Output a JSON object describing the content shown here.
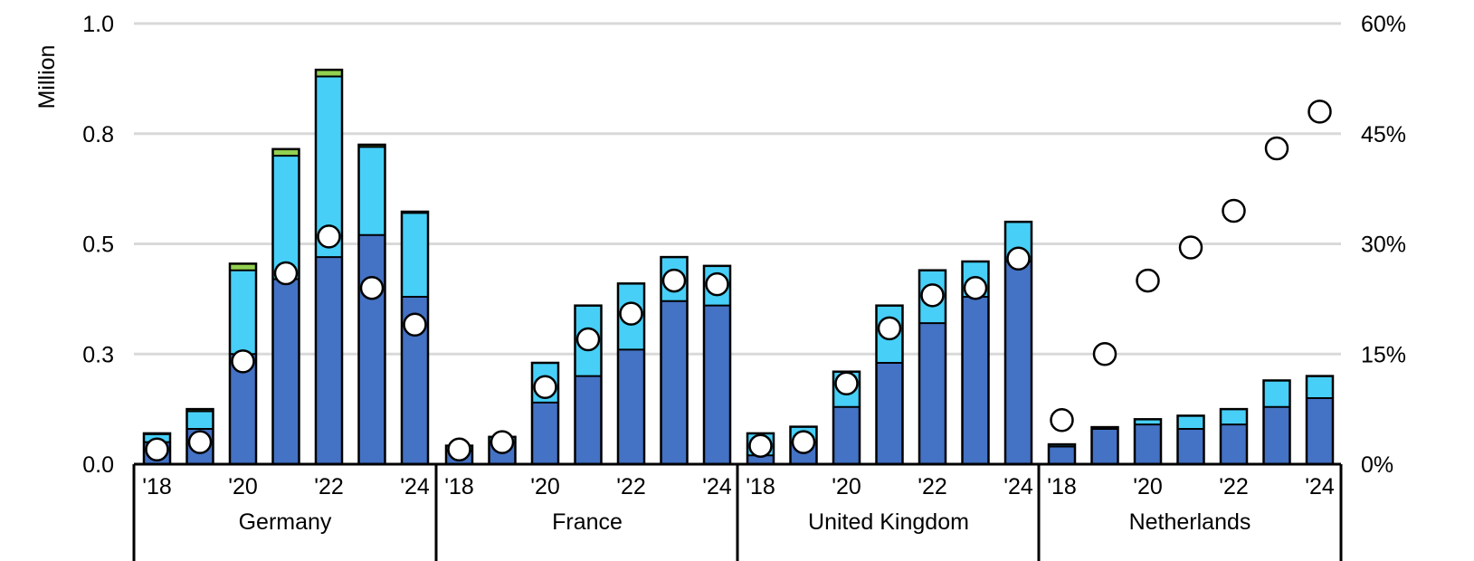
{
  "chart_data": {
    "type": "bar",
    "stacked": true,
    "ylabel": "Million",
    "ylim": [
      0,
      1.0
    ],
    "y_ticks": [
      "0.0",
      "0.3",
      "0.5",
      "0.8",
      "1.0"
    ],
    "y2lim": [
      0,
      60
    ],
    "y2_ticks": [
      "0%",
      "15%",
      "30%",
      "45%",
      "60%"
    ],
    "grid": true,
    "legend": "none",
    "colors": {
      "bottom": "#4472C4",
      "middle": "#47CFF7",
      "top": "#92D050",
      "marker": "#FFFFFF"
    },
    "groups": [
      {
        "name": "Germany",
        "years": [
          "'18",
          "'19",
          "'20",
          "'21",
          "'22",
          "'23",
          "'24"
        ],
        "year_labels": [
          "'18",
          "",
          "'20",
          "",
          "'22",
          "",
          "'24"
        ],
        "bottom": [
          0.05,
          0.08,
          0.25,
          0.42,
          0.47,
          0.52,
          0.38
        ],
        "middle": [
          0.018,
          0.04,
          0.19,
          0.28,
          0.41,
          0.2,
          0.19
        ],
        "top": [
          0.002,
          0.005,
          0.015,
          0.015,
          0.015,
          0.005,
          0.003
        ],
        "share_pct": [
          2,
          3,
          14,
          26,
          31,
          24,
          19
        ]
      },
      {
        "name": "France",
        "years": [
          "'18",
          "'19",
          "'20",
          "'21",
          "'22",
          "'23",
          "'24"
        ],
        "year_labels": [
          "'18",
          "",
          "'20",
          "",
          "'22",
          "",
          "'24"
        ],
        "bottom": [
          0.03,
          0.05,
          0.14,
          0.2,
          0.26,
          0.37,
          0.36
        ],
        "middle": [
          0.012,
          0.012,
          0.09,
          0.16,
          0.15,
          0.1,
          0.09
        ],
        "top": [
          0,
          0,
          0,
          0,
          0,
          0,
          0
        ],
        "share_pct": [
          2,
          3,
          10.5,
          17,
          20.5,
          25,
          24.5
        ]
      },
      {
        "name": "United Kingdom",
        "years": [
          "'18",
          "'19",
          "'20",
          "'21",
          "'22",
          "'23",
          "'24"
        ],
        "year_labels": [
          "'18",
          "",
          "'20",
          "",
          "'22",
          "",
          "'24"
        ],
        "bottom": [
          0.02,
          0.05,
          0.13,
          0.23,
          0.32,
          0.38,
          0.46
        ],
        "middle": [
          0.05,
          0.035,
          0.08,
          0.13,
          0.12,
          0.08,
          0.09
        ],
        "top": [
          0,
          0,
          0,
          0,
          0,
          0,
          0
        ],
        "share_pct": [
          2.5,
          3,
          11,
          18.5,
          23,
          24,
          28
        ]
      },
      {
        "name": "Netherlands",
        "years": [
          "'18",
          "'19",
          "'20",
          "'21",
          "'22",
          "'23",
          "'24"
        ],
        "year_labels": [
          "'18",
          "",
          "'20",
          "",
          "'22",
          "",
          "'24"
        ],
        "bottom": [
          0.04,
          0.08,
          0.09,
          0.08,
          0.09,
          0.13,
          0.15
        ],
        "middle": [
          0.005,
          0.004,
          0.012,
          0.03,
          0.035,
          0.06,
          0.05
        ],
        "top": [
          0,
          0,
          0,
          0,
          0,
          0,
          0
        ],
        "share_pct": [
          6,
          15,
          25,
          29.5,
          34.5,
          43,
          48
        ]
      }
    ]
  }
}
